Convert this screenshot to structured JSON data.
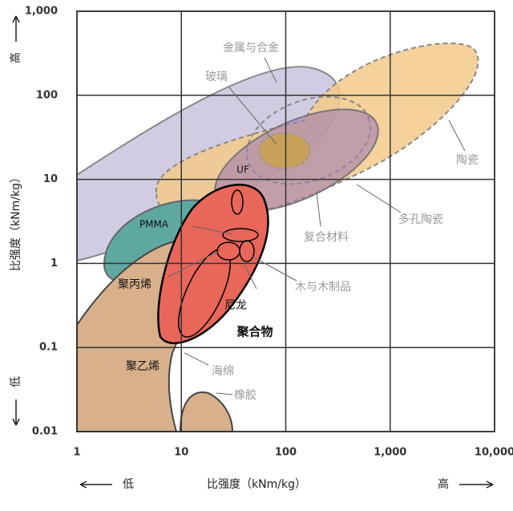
{
  "chart_data": {
    "type": "region-map",
    "x_label": "比强度（kNm/kg）",
    "y_label": "比强度（kNm/kg）",
    "x_low": "低",
    "x_high": "高",
    "y_low": "低",
    "y_high": "高",
    "log_scale": true,
    "grid": true,
    "xlim": [
      1,
      10000
    ],
    "ylim": [
      0.01,
      1000
    ],
    "xticks": [
      1,
      10,
      100,
      {
        "value": 1000,
        "label": "1,000"
      },
      {
        "value": 10000,
        "label": "10,000"
      }
    ],
    "yticks": [
      0.01,
      0.1,
      1,
      10,
      100,
      {
        "value": 1000,
        "label": "1,000"
      }
    ],
    "regions": [
      "金属与合金",
      "玻璃",
      "陶瓷",
      "多孔陶瓷",
      "复合材料",
      "木与木制品",
      "尼龙",
      "聚合物",
      "聚乙烯",
      "海绵",
      "橡胶",
      "聚丙烯",
      "PMMA",
      "UF"
    ]
  }
}
